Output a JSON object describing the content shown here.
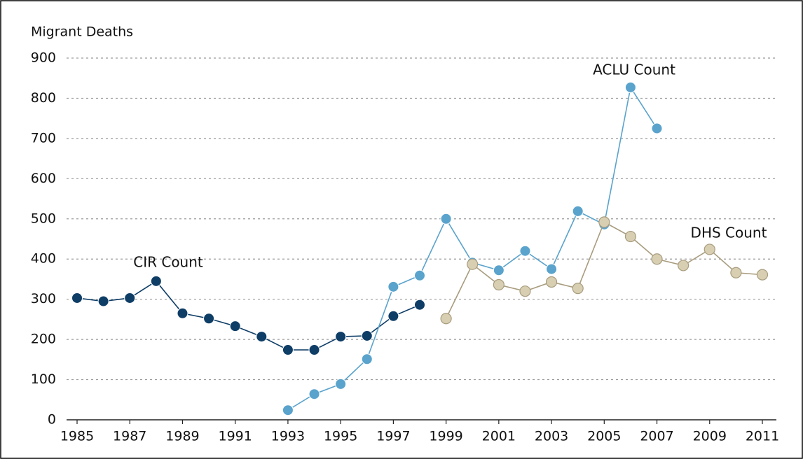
{
  "chart_data": {
    "type": "line",
    "y_axis_label": "Migrant Deaths",
    "x": [
      1985,
      1986,
      1987,
      1988,
      1989,
      1990,
      1991,
      1992,
      1993,
      1994,
      1995,
      1996,
      1997,
      1998,
      1999,
      2000,
      2001,
      2002,
      2003,
      2004,
      2005,
      2006,
      2007,
      2008,
      2009,
      2010,
      2011
    ],
    "xlim": [
      1985,
      2011
    ],
    "xticks": [
      1985,
      1987,
      1989,
      1991,
      1993,
      1995,
      1997,
      1999,
      2001,
      2003,
      2005,
      2007,
      2009,
      2011
    ],
    "ylim": [
      0,
      900
    ],
    "yticks": [
      0,
      100,
      200,
      300,
      400,
      500,
      600,
      700,
      800,
      900
    ],
    "grid": true,
    "series": [
      {
        "name": "CIR Count",
        "color": "#0e3d66",
        "values": [
          303,
          295,
          303,
          345,
          265,
          252,
          233,
          207,
          174,
          174,
          207,
          209,
          258,
          286,
          null,
          null,
          null,
          null,
          null,
          null,
          null,
          null,
          null,
          null,
          null,
          null,
          null
        ]
      },
      {
        "name": "ACLU Count",
        "color": "#5aa3cc",
        "values": [
          null,
          null,
          null,
          null,
          null,
          null,
          null,
          null,
          24,
          64,
          89,
          151,
          331,
          359,
          500,
          391,
          372,
          420,
          375,
          519,
          486,
          827,
          725,
          null,
          null,
          null,
          null
        ]
      },
      {
        "name": "DHS Count",
        "color": "#d8cfb2",
        "values": [
          null,
          null,
          null,
          null,
          null,
          null,
          null,
          null,
          null,
          null,
          null,
          null,
          null,
          null,
          252,
          387,
          336,
          320,
          343,
          327,
          492,
          456,
          400,
          384,
          424,
          366,
          361
        ]
      }
    ]
  }
}
